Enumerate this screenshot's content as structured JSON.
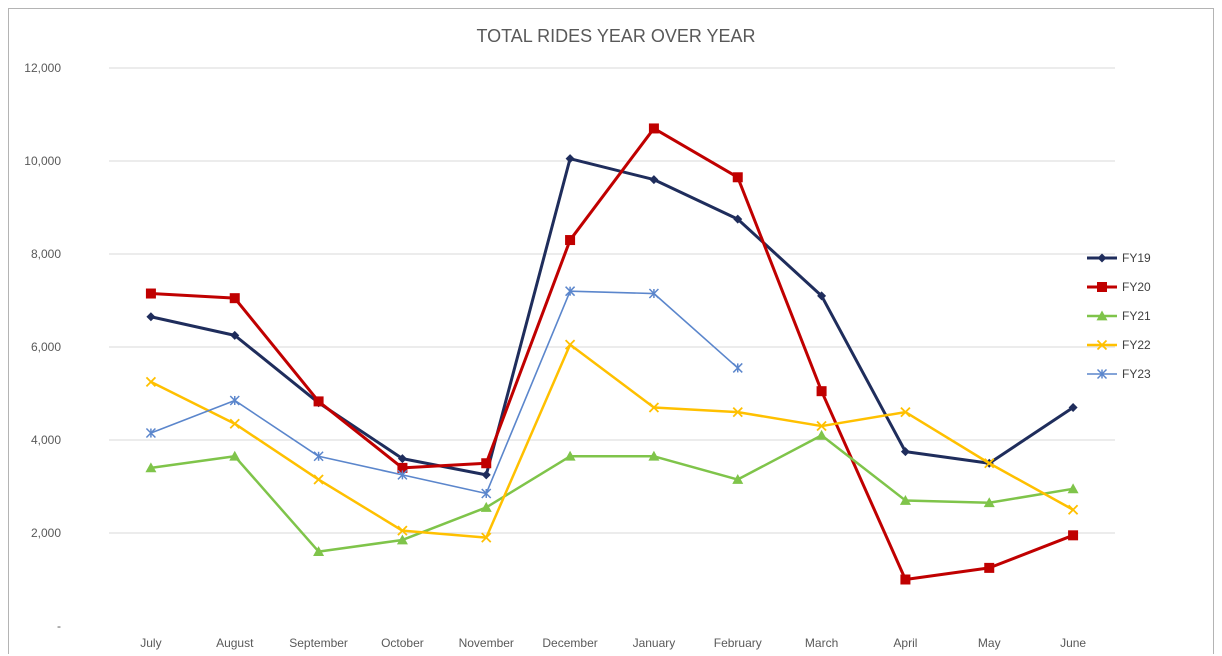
{
  "chart_data": {
    "type": "line",
    "title": "TOTAL RIDES YEAR OVER YEAR",
    "xlabel": "",
    "ylabel": "",
    "categories": [
      "July",
      "August",
      "September",
      "October",
      "November",
      "December",
      "January",
      "February",
      "March",
      "April",
      "May",
      "June"
    ],
    "ylim": [
      0,
      12000
    ],
    "yticks": [
      0,
      2000,
      4000,
      6000,
      8000,
      10000,
      12000
    ],
    "ytick_labels": [
      "-",
      "2,000",
      "4,000",
      "6,000",
      "8,000",
      "10,000",
      "12,000"
    ],
    "grid": true,
    "legend_position": "right",
    "series": [
      {
        "name": "FY19",
        "color": "#1f2d5c",
        "marker": "diamond",
        "values": [
          6650,
          6250,
          4800,
          3600,
          3250,
          10050,
          9600,
          8750,
          7100,
          3750,
          3500,
          4700
        ]
      },
      {
        "name": "FY20",
        "color": "#c00000",
        "marker": "square",
        "values": [
          7150,
          7050,
          4830,
          3400,
          3500,
          8300,
          10700,
          9650,
          5050,
          1000,
          1250,
          1950
        ]
      },
      {
        "name": "FY21",
        "color": "#7fc44a",
        "marker": "triangle",
        "values": [
          3400,
          3650,
          1600,
          1850,
          2550,
          3650,
          3650,
          3150,
          4100,
          2700,
          2650,
          2950
        ]
      },
      {
        "name": "FY22",
        "color": "#ffc000",
        "marker": "x",
        "values": [
          5250,
          4350,
          3150,
          2050,
          1900,
          6050,
          4700,
          4600,
          4300,
          4600,
          3500,
          2500
        ]
      },
      {
        "name": "FY23",
        "color": "#5b86cc",
        "marker": "star",
        "values": [
          4150,
          4850,
          3650,
          3250,
          2850,
          7200,
          7150,
          5550,
          null,
          null,
          null,
          null
        ]
      }
    ]
  }
}
